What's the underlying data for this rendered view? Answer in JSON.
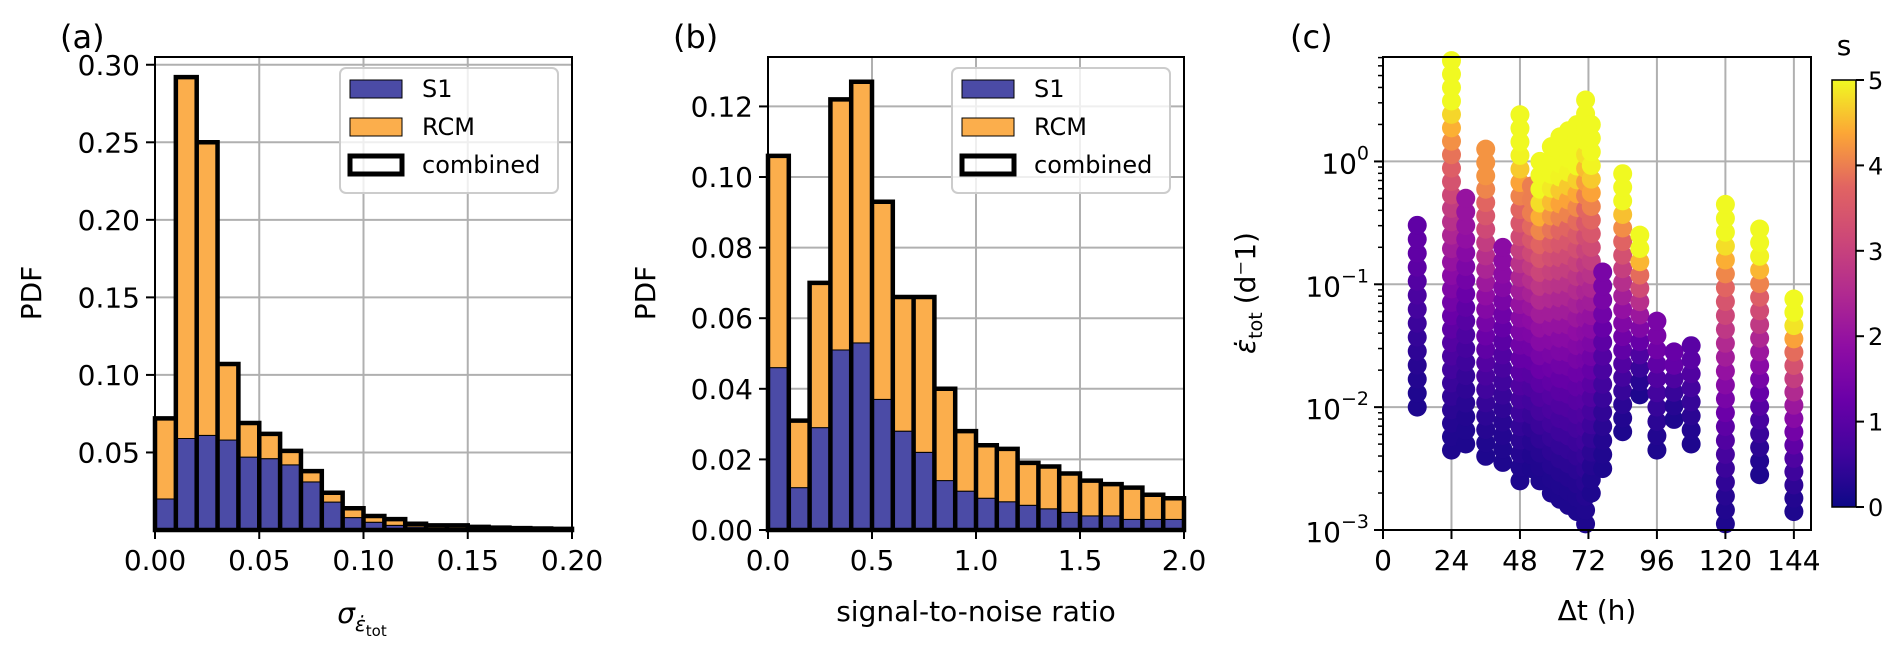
{
  "colors": {
    "s1": "#4b4ba6",
    "rcm": "#fbae4c",
    "edge": "#000000",
    "grid": "#b0b0b0"
  },
  "chart_data": [
    {
      "panel_label": "(a)",
      "type": "bar",
      "ylabel": "PDF",
      "xlabel_main": "σ",
      "xlabel_sub": "ε̇",
      "xlabel_subsub": "tot",
      "xlim": [
        0,
        0.2
      ],
      "ylim": [
        0,
        0.305
      ],
      "bin_edges": [
        0,
        0.01,
        0.02,
        0.03,
        0.04,
        0.05,
        0.06,
        0.07,
        0.08,
        0.09,
        0.1,
        0.11,
        0.12,
        0.13,
        0.14,
        0.15,
        0.16,
        0.17,
        0.18,
        0.19,
        0.2
      ],
      "xticks": [
        0,
        0.05,
        0.1,
        0.15,
        0.2
      ],
      "xtick_labels": [
        "0.00",
        "0.05",
        "0.10",
        "0.15",
        "0.20"
      ],
      "yticks": [
        0.05,
        0.1,
        0.15,
        0.2,
        0.25,
        0.3
      ],
      "ytick_labels": [
        "0.05",
        "0.10",
        "0.15",
        "0.20",
        "0.25",
        "0.30"
      ],
      "series": [
        {
          "name": "S1",
          "values": [
            0.02,
            0.059,
            0.061,
            0.058,
            0.047,
            0.046,
            0.042,
            0.031,
            0.018,
            0.008,
            0.005,
            0.003,
            0.002,
            0.001,
            0.001,
            0.0005,
            0.0003,
            0.0002,
            0.0001,
            0.0001
          ]
        },
        {
          "name": "RCM",
          "values": [
            0.052,
            0.233,
            0.189,
            0.049,
            0.022,
            0.016,
            0.009,
            0.007,
            0.006,
            0.006,
            0.004,
            0.004,
            0.002,
            0.002,
            0.002,
            0.0015,
            0.0012,
            0.001,
            0.0009,
            0.0006
          ]
        },
        {
          "name": "combined",
          "values": [
            0.072,
            0.292,
            0.25,
            0.107,
            0.069,
            0.062,
            0.051,
            0.038,
            0.024,
            0.014,
            0.009,
            0.007,
            0.004,
            0.003,
            0.003,
            0.002,
            0.0015,
            0.0012,
            0.001,
            0.0007
          ]
        }
      ],
      "legend": [
        "S1",
        "RCM",
        "combined"
      ],
      "legend_loc": "upper right"
    },
    {
      "panel_label": "(b)",
      "type": "bar",
      "ylabel": "PDF",
      "xlabel": "signal-to-noise ratio",
      "xlim": [
        0,
        2.0
      ],
      "ylim": [
        0,
        0.134
      ],
      "bin_edges": [
        0,
        0.1,
        0.2,
        0.3,
        0.4,
        0.5,
        0.6,
        0.7,
        0.8,
        0.9,
        1.0,
        1.1,
        1.2,
        1.3,
        1.4,
        1.5,
        1.6,
        1.7,
        1.8,
        1.9,
        2.0
      ],
      "xticks": [
        0,
        0.5,
        1.0,
        1.5,
        2.0
      ],
      "xtick_labels": [
        "0.0",
        "0.5",
        "1.0",
        "1.5",
        "2.0"
      ],
      "yticks": [
        0,
        0.02,
        0.04,
        0.06,
        0.08,
        0.1,
        0.12
      ],
      "ytick_labels": [
        "0.00",
        "0.02",
        "0.04",
        "0.06",
        "0.08",
        "0.10",
        "0.12"
      ],
      "series": [
        {
          "name": "S1",
          "values": [
            0.046,
            0.012,
            0.029,
            0.051,
            0.053,
            0.037,
            0.028,
            0.022,
            0.014,
            0.011,
            0.009,
            0.008,
            0.007,
            0.006,
            0.005,
            0.004,
            0.004,
            0.003,
            0.003,
            0.003
          ]
        },
        {
          "name": "RCM",
          "values": [
            0.06,
            0.019,
            0.041,
            0.071,
            0.074,
            0.056,
            0.038,
            0.044,
            0.026,
            0.017,
            0.015,
            0.015,
            0.012,
            0.012,
            0.011,
            0.01,
            0.009,
            0.009,
            0.007,
            0.006
          ]
        },
        {
          "name": "combined",
          "values": [
            0.106,
            0.031,
            0.07,
            0.122,
            0.127,
            0.093,
            0.066,
            0.066,
            0.04,
            0.028,
            0.024,
            0.023,
            0.019,
            0.018,
            0.016,
            0.014,
            0.013,
            0.012,
            0.01,
            0.009
          ]
        }
      ],
      "legend": [
        "S1",
        "RCM",
        "combined"
      ],
      "legend_loc": "upper right"
    },
    {
      "panel_label": "(c)",
      "type": "scatter",
      "xlabel": "Δt (h)",
      "ylabel_main": "ε̇",
      "ylabel_sub": "tot",
      "ylabel_units": "(d⁻1)",
      "xlim": [
        0,
        150
      ],
      "ylim_log10": [
        -3,
        0.85
      ],
      "yscale": "log",
      "xticks": [
        0,
        24,
        48,
        72,
        96,
        120,
        144
      ],
      "xtick_labels": [
        "0",
        "24",
        "48",
        "72",
        "96",
        "120",
        "144"
      ],
      "yticks_log10": [
        -3,
        -2,
        -1,
        0
      ],
      "ytick_base": "10",
      "ytick_exponents": [
        "−3",
        "−2",
        "−1",
        "0"
      ],
      "colorbar": {
        "label": "s",
        "range": [
          0,
          5
        ],
        "ticks": [
          "0",
          "1",
          "2",
          "3",
          "4",
          "5"
        ],
        "colormap": "plasma"
      },
      "columns": [
        {
          "x": 12,
          "log_min": -2.0,
          "log_max": -0.52,
          "s_max": 1.1
        },
        {
          "x": 24,
          "log_min": -2.35,
          "log_max": 0.82,
          "s_max": 5.0
        },
        {
          "x": 29,
          "log_min": -2.3,
          "log_max": -0.3,
          "s_max": 2.0
        },
        {
          "x": 36,
          "log_min": -2.4,
          "log_max": 0.1,
          "s_max": 4.2
        },
        {
          "x": 42,
          "log_min": -2.45,
          "log_max": -0.7,
          "s_max": 1.8
        },
        {
          "x": 48,
          "log_min": -2.6,
          "log_max": 0.38,
          "s_max": 5.0
        },
        {
          "x": 52,
          "log_min": -2.5,
          "log_max": -0.2,
          "s_max": 4.0
        },
        {
          "x": 55,
          "log_min": -2.6,
          "log_max": 0.0,
          "s_max": 5.0
        },
        {
          "x": 59,
          "log_min": -2.7,
          "log_max": 0.12,
          "s_max": 5.0
        },
        {
          "x": 62,
          "log_min": -2.75,
          "log_max": 0.2,
          "s_max": 5.0
        },
        {
          "x": 65,
          "log_min": -2.8,
          "log_max": 0.25,
          "s_max": 5.0
        },
        {
          "x": 68,
          "log_min": -2.85,
          "log_max": 0.3,
          "s_max": 5.0
        },
        {
          "x": 71,
          "log_min": -2.95,
          "log_max": 0.5,
          "s_max": 5.0
        },
        {
          "x": 73,
          "log_min": -2.7,
          "log_max": 0.3,
          "s_max": 5.0
        },
        {
          "x": 77,
          "log_min": -2.5,
          "log_max": -0.9,
          "s_max": 1.5
        },
        {
          "x": 84,
          "log_min": -2.2,
          "log_max": -0.1,
          "s_max": 5.0
        },
        {
          "x": 90,
          "log_min": -1.9,
          "log_max": -0.6,
          "s_max": 5.0
        },
        {
          "x": 96,
          "log_min": -2.35,
          "log_max": -1.3,
          "s_max": 1.5
        },
        {
          "x": 102,
          "log_min": -2.1,
          "log_max": -1.55,
          "s_max": 1.2
        },
        {
          "x": 108,
          "log_min": -2.3,
          "log_max": -1.5,
          "s_max": 1.0
        },
        {
          "x": 120,
          "log_min": -2.95,
          "log_max": -0.35,
          "s_max": 5.0
        },
        {
          "x": 132,
          "log_min": -2.55,
          "log_max": -0.55,
          "s_max": 5.0
        },
        {
          "x": 144,
          "log_min": -2.85,
          "log_max": -1.12,
          "s_max": 5.0
        }
      ]
    }
  ]
}
